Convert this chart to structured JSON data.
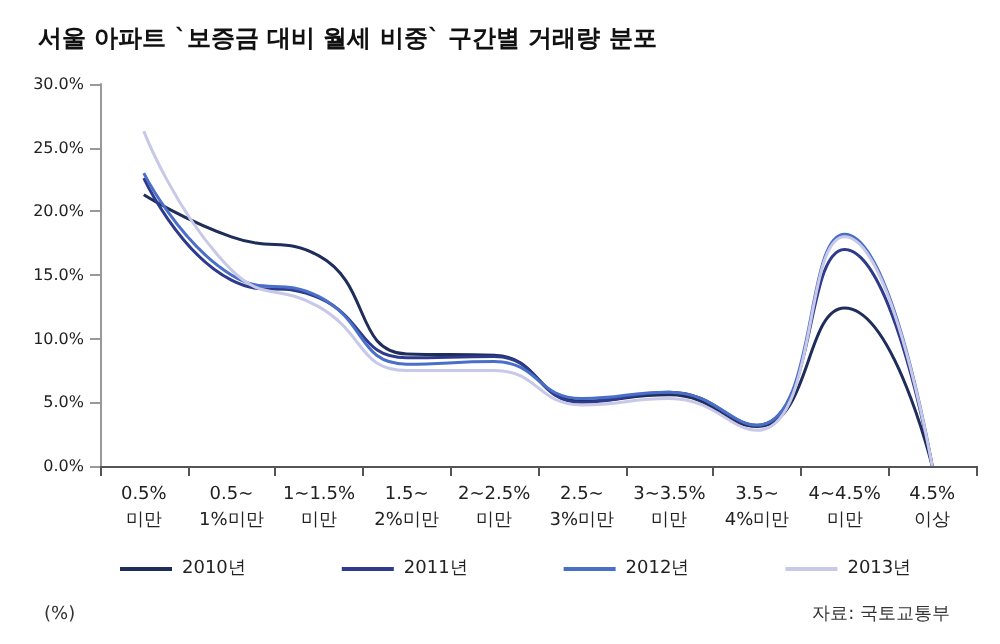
{
  "chart_data": {
    "type": "line",
    "title": "서울 아파트 `보증금 대비 월세 비중` 구간별 거래량 분포",
    "categories": [
      "0.5%\n미만",
      "0.5~\n1%미만",
      "1~1.5%\n미만",
      "1.5~\n2%미만",
      "2~2.5%\n미만",
      "2.5~\n3%미만",
      "3~3.5%\n미만",
      "3.5~\n4%미만",
      "4~4.5%\n미만",
      "4.5%\n이상"
    ],
    "series": [
      {
        "name": "2010년",
        "color": "#1f2d5a",
        "values": [
          21.3,
          18.0,
          16.5,
          8.8,
          8.7,
          5.1,
          5.6,
          3.1,
          12.4,
          0
        ]
      },
      {
        "name": "2011년",
        "color": "#2e3a8c",
        "values": [
          22.6,
          14.6,
          13.2,
          8.5,
          8.6,
          5.0,
          5.8,
          3.2,
          17.0,
          0
        ]
      },
      {
        "name": "2012년",
        "color": "#4a6fc8",
        "values": [
          23.0,
          15.0,
          13.3,
          8.0,
          8.2,
          5.3,
          5.8,
          3.2,
          18.2,
          0
        ]
      },
      {
        "name": "2013년",
        "color": "#c8c8e8",
        "values": [
          26.3,
          15.4,
          12.5,
          7.5,
          7.5,
          4.8,
          5.3,
          2.8,
          18.0,
          0
        ]
      }
    ],
    "ylim": [
      0,
      30
    ],
    "yticks": [
      {
        "value": 0,
        "label": "0.0%"
      },
      {
        "value": 5,
        "label": "5.0%"
      },
      {
        "value": 10,
        "label": "10.0%"
      },
      {
        "value": 15,
        "label": "15.0%"
      },
      {
        "value": 20,
        "label": "20.0%"
      },
      {
        "value": 25,
        "label": "25.0%"
      },
      {
        "value": 30,
        "label": "30.0%"
      }
    ],
    "annotations": [
      "(%)",
      "자료: 국토교통부"
    ],
    "legend": "bottom",
    "grid": false,
    "marker": "none",
    "line_style": "solid"
  }
}
